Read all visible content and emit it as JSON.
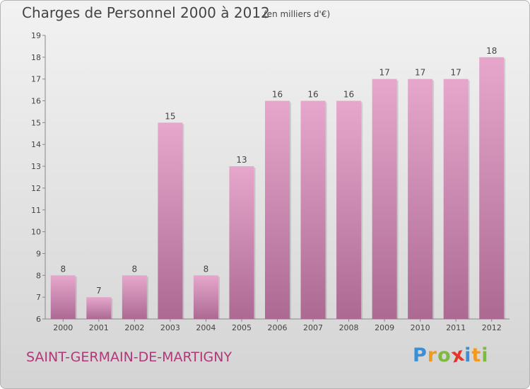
{
  "chart_data": {
    "type": "bar",
    "title": "Charges de Personnel 2000 à 2012",
    "unit_note": "(en milliers d'€)",
    "categories": [
      "2000",
      "2001",
      "2002",
      "2003",
      "2004",
      "2005",
      "2006",
      "2007",
      "2008",
      "2009",
      "2010",
      "2011",
      "2012"
    ],
    "values": [
      8,
      7,
      8,
      15,
      8,
      13,
      16,
      16,
      16,
      17,
      17,
      17,
      18
    ],
    "ylim": [
      6,
      19
    ],
    "yticks": [
      6,
      7,
      8,
      9,
      10,
      11,
      12,
      13,
      14,
      15,
      16,
      17,
      18,
      19
    ],
    "xlabel": "",
    "ylabel": "",
    "grid": false,
    "legend": "none",
    "bar_color": "#c77aa5"
  },
  "footer": {
    "commune": "SAINT-GERMAIN-DE-MARTIGNY",
    "logo_letters": [
      "P",
      "r",
      "o",
      "x",
      "i",
      "t",
      "i"
    ],
    "logo_colors": [
      "#3a8fd6",
      "#f29a1d",
      "#7dbb3c",
      "#e5352b",
      "#3a8fd6",
      "#f29a1d",
      "#7dbb3c"
    ]
  }
}
